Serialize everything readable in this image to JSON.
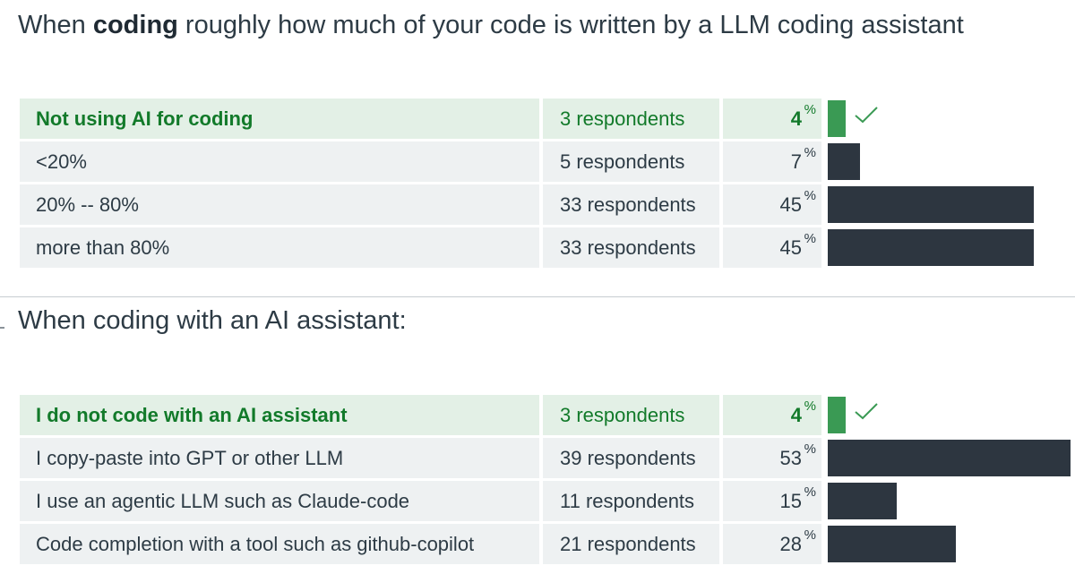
{
  "questions": [
    {
      "title_prefix": "When ",
      "title_bold": "coding",
      "title_suffix": " roughly how much of your code is written by a LLM coding assistant",
      "answers": [
        {
          "label": "Not using AI for coding",
          "respondents": "3 respondents",
          "percent": "4",
          "percent_sign": "%",
          "value": 4,
          "correct": true
        },
        {
          "label": "<20%",
          "respondents": "5 respondents",
          "percent": "7",
          "percent_sign": "%",
          "value": 7,
          "correct": false
        },
        {
          "label": "20% -- 80%",
          "respondents": "33 respondents",
          "percent": "45",
          "percent_sign": "%",
          "value": 45,
          "correct": false
        },
        {
          "label": "more than 80%",
          "respondents": "33 respondents",
          "percent": "45",
          "percent_sign": "%",
          "value": 45,
          "correct": false
        }
      ]
    },
    {
      "title_prefix": "When coding with an AI assistant:",
      "title_bold": "",
      "title_suffix": "",
      "answers": [
        {
          "label": "I do not code with an AI assistant",
          "respondents": "3 respondents",
          "percent": "4",
          "percent_sign": "%",
          "value": 4,
          "correct": true
        },
        {
          "label": "I copy-paste into GPT or other LLM",
          "respondents": "39 respondents",
          "percent": "53",
          "percent_sign": "%",
          "value": 53,
          "correct": false
        },
        {
          "label": "I use an agentic LLM such as Claude-code",
          "respondents": "11 respondents",
          "percent": "15",
          "percent_sign": "%",
          "value": 15,
          "correct": false
        },
        {
          "label": "Code completion with a tool such as github-copilot",
          "respondents": "21 respondents",
          "percent": "28",
          "percent_sign": "%",
          "value": 28,
          "correct": false
        }
      ]
    }
  ],
  "colors": {
    "correct_bar": "#3a9a54",
    "bar": "#2d3640",
    "correct_text": "#127a2a",
    "row_bg": "#eef1f2",
    "correct_row_bg": "#e3f0e6"
  },
  "icons": {
    "correct": "checkmark-icon"
  },
  "chart_data": [
    {
      "type": "bar",
      "orientation": "horizontal",
      "title": "When coding roughly how much of your code is written by a LLM coding assistant",
      "categories": [
        "Not using AI for coding",
        "<20%",
        "20% -- 80%",
        "more than 80%"
      ],
      "values": [
        4,
        7,
        45,
        45
      ],
      "respondents": [
        3,
        5,
        33,
        33
      ],
      "unit": "%",
      "highlighted": "Not using AI for coding"
    },
    {
      "type": "bar",
      "orientation": "horizontal",
      "title": "When coding with an AI assistant:",
      "categories": [
        "I do not code with an AI assistant",
        "I copy-paste into GPT or other LLM",
        "I use an agentic LLM such as Claude-code",
        "Code completion with a tool such as github-copilot"
      ],
      "values": [
        4,
        53,
        15,
        28
      ],
      "respondents": [
        3,
        39,
        11,
        21
      ],
      "unit": "%",
      "highlighted": "I do not code with an AI assistant"
    }
  ]
}
